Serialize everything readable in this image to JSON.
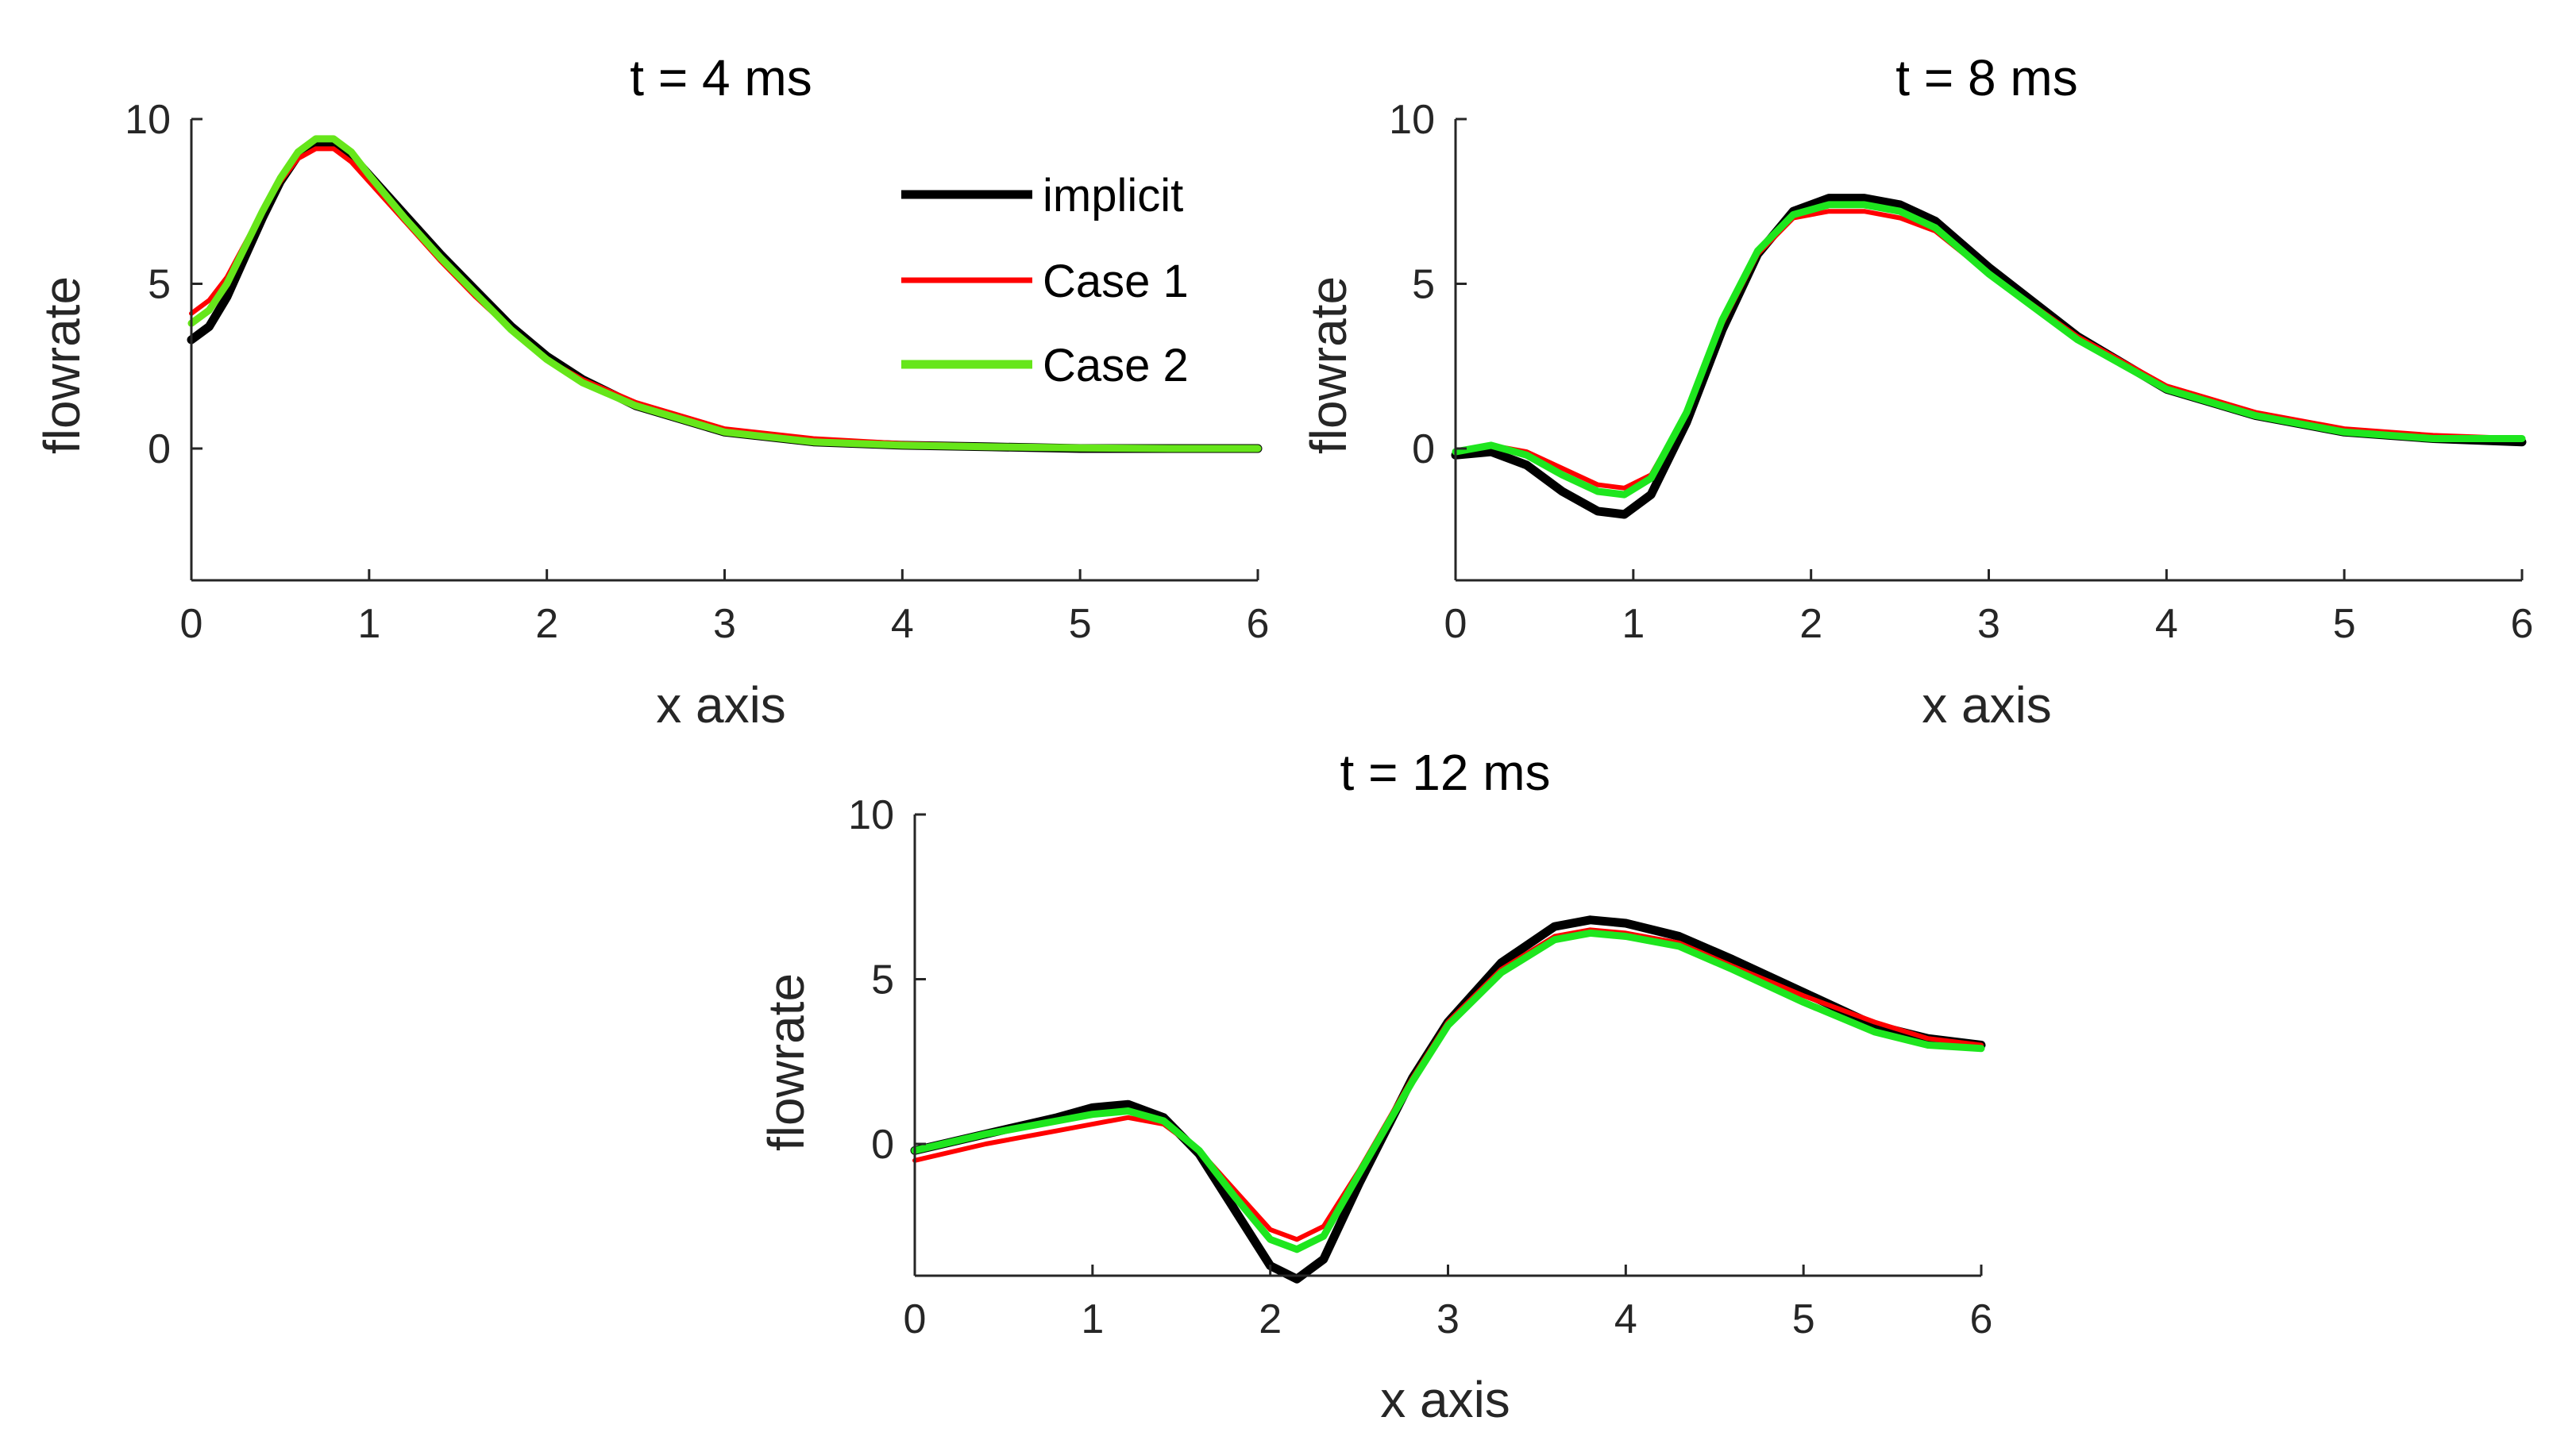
{
  "chart_data": [
    {
      "type": "line",
      "title": "t = 4 ms",
      "xlabel": "x axis",
      "ylabel": "flowrate",
      "xlim": [
        0,
        6
      ],
      "ylim": [
        -4,
        10
      ],
      "xticks": [
        "0",
        "1",
        "2",
        "3",
        "4",
        "5",
        "6"
      ],
      "yticks": [
        "0",
        "5",
        "10"
      ],
      "legend": {
        "placement": "top-right",
        "entries": [
          "implicit",
          "Case 1",
          "Case 2"
        ]
      },
      "series": [
        {
          "name": "implicit",
          "color": "#000000",
          "x": [
            0,
            0.1,
            0.2,
            0.3,
            0.4,
            0.5,
            0.6,
            0.7,
            0.8,
            0.9,
            1.0,
            1.2,
            1.4,
            1.6,
            1.8,
            2.0,
            2.2,
            2.5,
            3.0,
            3.5,
            4.0,
            4.5,
            5.0,
            5.5,
            6.0
          ],
          "y": [
            3.3,
            3.7,
            4.6,
            5.8,
            7.0,
            8.1,
            8.9,
            9.3,
            9.3,
            8.9,
            8.3,
            7.1,
            5.9,
            4.8,
            3.7,
            2.8,
            2.1,
            1.3,
            0.5,
            0.2,
            0.1,
            0.05,
            0.0,
            0.0,
            0.0
          ]
        },
        {
          "name": "Case 1",
          "color": "#ff0000",
          "x": [
            0,
            0.1,
            0.2,
            0.3,
            0.4,
            0.5,
            0.6,
            0.7,
            0.8,
            0.9,
            1.0,
            1.2,
            1.4,
            1.6,
            1.8,
            2.0,
            2.2,
            2.5,
            3.0,
            3.5,
            4.0,
            4.5,
            5.0,
            5.5,
            6.0
          ],
          "y": [
            4.1,
            4.5,
            5.2,
            6.2,
            7.2,
            8.1,
            8.8,
            9.1,
            9.1,
            8.7,
            8.1,
            6.9,
            5.7,
            4.6,
            3.6,
            2.7,
            2.1,
            1.4,
            0.6,
            0.3,
            0.15,
            0.08,
            0.04,
            0.02,
            0.0
          ]
        },
        {
          "name": "Case 2",
          "color": "#66e61a",
          "x": [
            0,
            0.1,
            0.2,
            0.3,
            0.4,
            0.5,
            0.6,
            0.7,
            0.8,
            0.9,
            1.0,
            1.2,
            1.4,
            1.6,
            1.8,
            2.0,
            2.2,
            2.5,
            3.0,
            3.5,
            4.0,
            4.5,
            5.0,
            5.5,
            6.0
          ],
          "y": [
            3.8,
            4.2,
            5.0,
            6.1,
            7.2,
            8.2,
            9.0,
            9.4,
            9.4,
            9.0,
            8.3,
            7.0,
            5.8,
            4.7,
            3.6,
            2.7,
            2.0,
            1.3,
            0.5,
            0.2,
            0.1,
            0.05,
            0.02,
            0.0,
            0.0
          ]
        }
      ]
    },
    {
      "type": "line",
      "title": "t = 8 ms",
      "xlabel": "x axis",
      "ylabel": "flowrate",
      "xlim": [
        0,
        6
      ],
      "ylim": [
        -4,
        10
      ],
      "xticks": [
        "0",
        "1",
        "2",
        "3",
        "4",
        "5",
        "6"
      ],
      "yticks": [
        "0",
        "5",
        "10"
      ],
      "series": [
        {
          "name": "implicit",
          "color": "#000000",
          "x": [
            0,
            0.2,
            0.4,
            0.6,
            0.8,
            0.95,
            1.1,
            1.3,
            1.5,
            1.7,
            1.9,
            2.1,
            2.3,
            2.5,
            2.7,
            3.0,
            3.5,
            4.0,
            4.5,
            5.0,
            5.5,
            6.0
          ],
          "y": [
            -0.2,
            -0.1,
            -0.5,
            -1.3,
            -1.9,
            -2.0,
            -1.4,
            0.8,
            3.6,
            5.9,
            7.2,
            7.6,
            7.6,
            7.4,
            6.9,
            5.5,
            3.4,
            1.8,
            1.0,
            0.5,
            0.3,
            0.2
          ]
        },
        {
          "name": "Case 1",
          "color": "#ff0000",
          "x": [
            0,
            0.2,
            0.4,
            0.6,
            0.8,
            0.95,
            1.1,
            1.3,
            1.5,
            1.7,
            1.9,
            2.1,
            2.3,
            2.5,
            2.7,
            3.0,
            3.5,
            4.0,
            4.5,
            5.0,
            5.5,
            6.0
          ],
          "y": [
            -0.1,
            0.1,
            -0.1,
            -0.6,
            -1.1,
            -1.2,
            -0.8,
            1.1,
            3.8,
            5.9,
            7.0,
            7.2,
            7.2,
            7.0,
            6.6,
            5.3,
            3.4,
            1.9,
            1.1,
            0.6,
            0.4,
            0.3
          ]
        },
        {
          "name": "Case 2",
          "color": "#1ee61e",
          "x": [
            0,
            0.2,
            0.4,
            0.6,
            0.8,
            0.95,
            1.1,
            1.3,
            1.5,
            1.7,
            1.9,
            2.1,
            2.3,
            2.5,
            2.7,
            3.0,
            3.5,
            4.0,
            4.5,
            5.0,
            5.5,
            6.0
          ],
          "y": [
            -0.1,
            0.1,
            -0.2,
            -0.8,
            -1.3,
            -1.4,
            -0.9,
            1.1,
            3.9,
            6.0,
            7.1,
            7.4,
            7.4,
            7.2,
            6.7,
            5.3,
            3.3,
            1.8,
            1.0,
            0.5,
            0.3,
            0.3
          ]
        }
      ]
    },
    {
      "type": "line",
      "title": "t = 12 ms",
      "xlabel": "x axis",
      "ylabel": "flowrate",
      "xlim": [
        0,
        6
      ],
      "ylim": [
        -4,
        10
      ],
      "xticks": [
        "0",
        "1",
        "2",
        "3",
        "4",
        "5",
        "6"
      ],
      "yticks": [
        "0",
        "5",
        "10"
      ],
      "series": [
        {
          "name": "implicit",
          "color": "#000000",
          "x": [
            0,
            0.4,
            0.8,
            1.0,
            1.2,
            1.4,
            1.6,
            1.8,
            2.0,
            2.15,
            2.3,
            2.5,
            2.8,
            3.0,
            3.3,
            3.6,
            3.8,
            4.0,
            4.3,
            4.6,
            5.0,
            5.4,
            5.7,
            6.0
          ],
          "y": [
            -0.2,
            0.3,
            0.8,
            1.1,
            1.2,
            0.8,
            -0.3,
            -2.0,
            -3.7,
            -4.1,
            -3.5,
            -1.2,
            2.0,
            3.7,
            5.5,
            6.6,
            6.8,
            6.7,
            6.3,
            5.6,
            4.6,
            3.6,
            3.2,
            3.0
          ]
        },
        {
          "name": "Case 1",
          "color": "#ff0000",
          "x": [
            0,
            0.4,
            0.8,
            1.0,
            1.2,
            1.4,
            1.6,
            1.8,
            2.0,
            2.15,
            2.3,
            2.5,
            2.8,
            3.0,
            3.3,
            3.6,
            3.8,
            4.0,
            4.3,
            4.6,
            5.0,
            5.4,
            5.7,
            6.0
          ],
          "y": [
            -0.5,
            0.0,
            0.4,
            0.6,
            0.8,
            0.6,
            -0.2,
            -1.4,
            -2.6,
            -2.9,
            -2.5,
            -0.8,
            2.0,
            3.7,
            5.3,
            6.3,
            6.5,
            6.4,
            6.1,
            5.4,
            4.5,
            3.7,
            3.2,
            3.0
          ]
        },
        {
          "name": "Case 2",
          "color": "#1ee61e",
          "x": [
            0,
            0.4,
            0.8,
            1.0,
            1.2,
            1.4,
            1.6,
            1.8,
            2.0,
            2.15,
            2.3,
            2.5,
            2.8,
            3.0,
            3.3,
            3.6,
            3.8,
            4.0,
            4.3,
            4.6,
            5.0,
            5.4,
            5.7,
            6.0
          ],
          "y": [
            -0.2,
            0.3,
            0.7,
            0.9,
            1.0,
            0.7,
            -0.2,
            -1.6,
            -2.9,
            -3.2,
            -2.8,
            -0.9,
            1.9,
            3.6,
            5.2,
            6.2,
            6.4,
            6.3,
            6.0,
            5.3,
            4.3,
            3.4,
            3.0,
            2.9
          ]
        }
      ]
    }
  ]
}
